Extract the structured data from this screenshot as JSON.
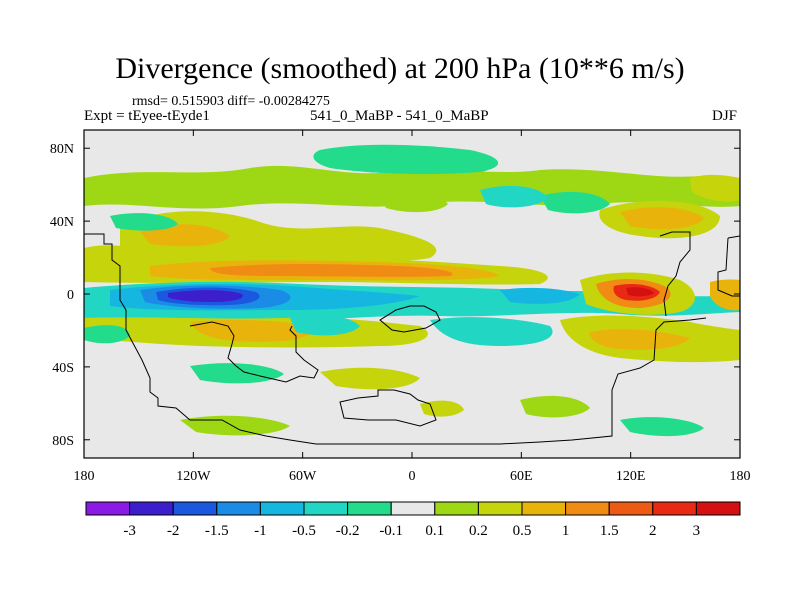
{
  "chart_data": {
    "type": "heatmap",
    "title": "Divergence (smoothed) at 200 hPa (10**6 m/s)",
    "stats_line": "rmsd= 0.515903 diff= -0.00284275",
    "experiment_label": "Expt = tEyee-tEyde1",
    "case_label": "541_0_MaBP - 541_0_MaBP",
    "season": "DJF",
    "stats": {
      "rmsd": 0.515903,
      "diff": -0.00284275
    },
    "x_range": [
      -180,
      180
    ],
    "y_range": [
      -90,
      90
    ],
    "x_ticks": [
      {
        "value": -180,
        "label": "180"
      },
      {
        "value": -120,
        "label": "120W"
      },
      {
        "value": -60,
        "label": "60W"
      },
      {
        "value": 0,
        "label": "0"
      },
      {
        "value": 60,
        "label": "60E"
      },
      {
        "value": 120,
        "label": "120E"
      },
      {
        "value": 180,
        "label": "180"
      }
    ],
    "y_ticks": [
      {
        "value": 80,
        "label": "80N"
      },
      {
        "value": 40,
        "label": "40N"
      },
      {
        "value": 0,
        "label": "0"
      },
      {
        "value": -40,
        "label": "40S"
      },
      {
        "value": -80,
        "label": "80S"
      }
    ],
    "colorbar": {
      "labels": [
        "-3",
        "-2",
        "-1.5",
        "-1",
        "-0.5",
        "-0.2",
        "-0.1",
        "0.1",
        "0.2",
        "0.5",
        "1",
        "1.5",
        "2",
        "3"
      ],
      "colors": [
        "#8b1ae6",
        "#3c1ecc",
        "#1a58e0",
        "#1a8ce6",
        "#15b7e0",
        "#22d6c4",
        "#22dc8c",
        "#e8e8e8",
        "#9ed815",
        "#c6d40c",
        "#e8b40c",
        "#f08c14",
        "#ec5a14",
        "#e82a14",
        "#d41010"
      ]
    },
    "background_color": "#e8e8e8",
    "features": [
      {
        "name": "equatorial-convergence-band",
        "lon": [
          -180,
          180
        ],
        "lat": [
          -5,
          5
        ],
        "value": -1.0
      },
      {
        "name": "central-pacific-convergence-max",
        "lon": [
          -135,
          -100
        ],
        "lat": [
          -4,
          4
        ],
        "value": -3.0
      },
      {
        "name": "tropical-divergence-band-north",
        "lon": [
          -150,
          -20
        ],
        "lat": [
          6,
          14
        ],
        "value": 1.0
      },
      {
        "name": "maritime-continent-divergence-max",
        "lon": [
          110,
          140
        ],
        "lat": [
          -3,
          5
        ],
        "value": 2.5
      },
      {
        "name": "south-pacific-divergence",
        "lon": [
          -120,
          -90
        ],
        "lat": [
          -25,
          -15
        ],
        "value": 0.7
      },
      {
        "name": "north-pacific-divergence",
        "lon": [
          -140,
          -110
        ],
        "lat": [
          25,
          40
        ],
        "value": 0.7
      },
      {
        "name": "east-asia-divergence",
        "lon": [
          100,
          145
        ],
        "lat": [
          25,
          40
        ],
        "value": 1.0
      }
    ]
  }
}
